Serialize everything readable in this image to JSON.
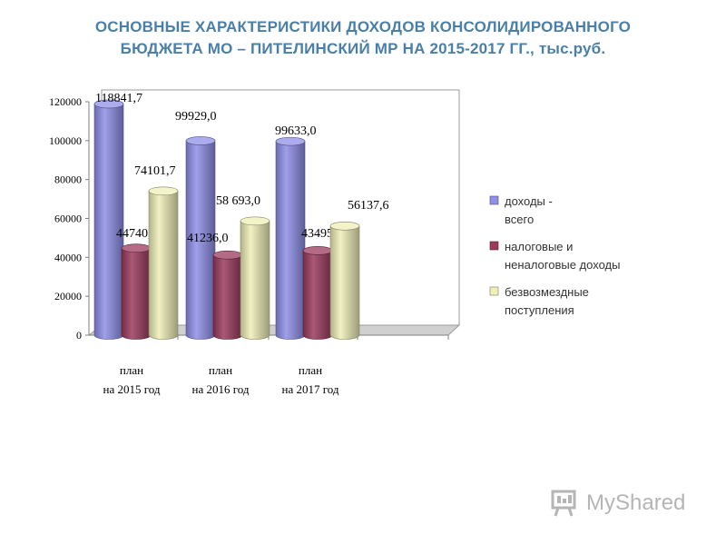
{
  "title": {
    "line1": "ОСНОВНЫЕ ХАРАКТЕРИСТИКИ ДОХОДОВ КОНСОЛИДИРОВАННОГО",
    "line2": "БЮДЖЕТА МО – ПИТЕЛИНСКИЙ МР НА 2015-2017 ГГ., тыс.руб."
  },
  "watermark": {
    "text": "MyShared",
    "icon": "myshared-logo-icon"
  },
  "chart_data": {
    "type": "bar",
    "style": "3d-cylinder",
    "categories": [
      [
        "план",
        "на 2015 год"
      ],
      [
        "план",
        "на 2016 год"
      ],
      [
        "план",
        "на 2017 год"
      ]
    ],
    "ylim": [
      0,
      120000
    ],
    "yticks": [
      0,
      20000,
      40000,
      60000,
      80000,
      100000,
      120000
    ],
    "grid": false,
    "legend_position": "right",
    "series": [
      {
        "name": [
          "доходы -",
          "всего"
        ],
        "color": "#8f8fe8",
        "values": [
          118841.7,
          99929.0,
          99633.0
        ],
        "labels": [
          "118841,7",
          "99929,0",
          "99633,0"
        ]
      },
      {
        "name": [
          "налоговые и",
          "неналоговые доходы"
        ],
        "color": "#9b3a5e",
        "values": [
          44740.0,
          41236.0,
          43495.4
        ],
        "labels": [
          "44740,0",
          "41236,0",
          "43495,4"
        ]
      },
      {
        "name": [
          "безвозмездные",
          "поступления"
        ],
        "color": "#efefb8",
        "values": [
          74101.7,
          58693.0,
          56137.6
        ],
        "labels": [
          "74101,7",
          "58 693,0",
          "56137,6"
        ]
      }
    ]
  }
}
